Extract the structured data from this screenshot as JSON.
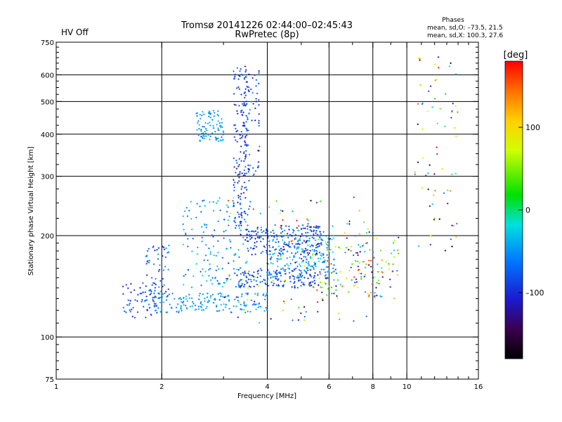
{
  "status_label": "HV Off",
  "status_color": "#cc0000",
  "phases_block": {
    "title": "Phases",
    "line_o": "mean, sd,O: –73.5, 21.5",
    "line_x": "mean, sd,X: 100.3, 27.6"
  },
  "colorbar": {
    "unit_label": "[deg]",
    "range": [
      -180,
      180
    ],
    "tick_labels": [
      "100",
      "0",
      "–100"
    ],
    "tick_values": [
      100,
      0,
      -100
    ]
  },
  "chart_data": {
    "type": "scatter",
    "title": "Tromsø 20141226 02:44:00–02:45:43",
    "subtitle": "RwPretec (8p)",
    "xlabel": "Frequency [MHz]",
    "ylabel": "Stationary phase Virtual Height [km]",
    "xscale": "log",
    "yscale": "log",
    "xlim": [
      1,
      16
    ],
    "ylim": [
      75,
      750
    ],
    "grid": true,
    "x_major_ticks": [
      {
        "value": 1,
        "label": "1"
      },
      {
        "value": 2,
        "label": "2"
      },
      {
        "value": 4,
        "label": "4"
      },
      {
        "value": 6,
        "label": "6"
      },
      {
        "value": 8,
        "label": "8"
      },
      {
        "value": 10,
        "label": "10"
      },
      {
        "value": 16,
        "label": "16"
      }
    ],
    "y_major_ticks": [
      {
        "value": 75,
        "label": "75"
      },
      {
        "value": 100,
        "label": "100"
      },
      {
        "value": 200,
        "label": "200"
      },
      {
        "value": 300,
        "label": "300"
      },
      {
        "value": 400,
        "label": "400"
      },
      {
        "value": 500,
        "label": "500"
      },
      {
        "value": 600,
        "label": "600"
      },
      {
        "value": 750,
        "label": "750"
      }
    ],
    "x_gridlines": [
      2,
      4,
      6,
      8,
      10
    ],
    "y_gridlines": [
      100,
      200,
      300,
      400,
      500,
      600
    ],
    "color_encoding": "phase [deg], -180 to 180",
    "clusters": [
      {
        "f_range": [
          1.55,
          1.95
        ],
        "h_range": [
          113,
          145
        ],
        "phase_range": [
          -120,
          -60
        ],
        "count": 60
      },
      {
        "f_range": [
          1.8,
          2.1
        ],
        "h_range": [
          128,
          190
        ],
        "phase_range": [
          -110,
          -40
        ],
        "count": 60
      },
      {
        "f_range": [
          1.9,
          4.0
        ],
        "h_range": [
          118,
          135
        ],
        "phase_range": [
          -70,
          -30
        ],
        "count": 160
      },
      {
        "f_range": [
          2.3,
          3.5
        ],
        "h_range": [
          140,
          260
        ],
        "phase_range": [
          -80,
          -20
        ],
        "count": 140
      },
      {
        "f_range": [
          2.5,
          3.0
        ],
        "h_range": [
          380,
          470
        ],
        "phase_range": [
          -70,
          -30
        ],
        "count": 90
      },
      {
        "f_range": [
          3.2,
          3.55
        ],
        "h_range": [
          200,
          640
        ],
        "phase_range": [
          -130,
          -60
        ],
        "count": 150
      },
      {
        "f_range": [
          3.4,
          3.8
        ],
        "h_range": [
          300,
          620
        ],
        "phase_range": [
          -120,
          -50
        ],
        "count": 70
      },
      {
        "f_range": [
          3.3,
          5.5
        ],
        "h_range": [
          140,
          160
        ],
        "phase_range": [
          -110,
          -60
        ],
        "count": 150
      },
      {
        "f_range": [
          3.5,
          5.8
        ],
        "h_range": [
          175,
          215
        ],
        "phase_range": [
          -120,
          -50
        ],
        "count": 200
      },
      {
        "f_range": [
          4.0,
          6.3
        ],
        "h_range": [
          150,
          200
        ],
        "phase_range": [
          -80,
          -20
        ],
        "count": 150
      },
      {
        "f_range": [
          5.0,
          9.5
        ],
        "h_range": [
          130,
          200
        ],
        "phase_range": [
          -150,
          170
        ],
        "count": 150
      },
      {
        "f_range": [
          3.0,
          8.0
        ],
        "h_range": [
          110,
          260
        ],
        "phase_range": [
          -180,
          180
        ],
        "count": 150
      },
      {
        "f_range": [
          10.5,
          14.0
        ],
        "h_range": [
          180,
          680
        ],
        "phase_range": [
          -180,
          180
        ],
        "count": 70
      }
    ]
  }
}
